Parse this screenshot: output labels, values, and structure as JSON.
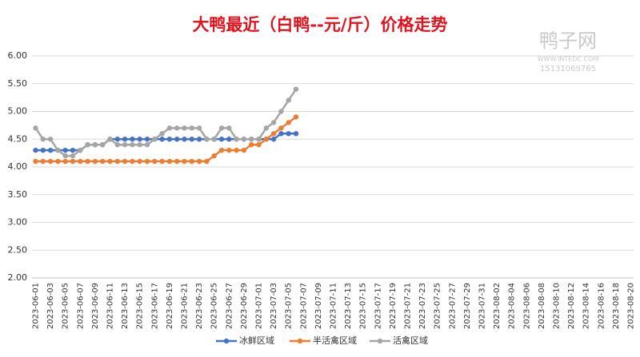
{
  "chart_data": {
    "type": "line",
    "title": "大鸭最近（白鸭--元/斤）价格走势",
    "watermark": [
      "鸭子网",
      "WWW.INTEDC.COM",
      "15131069765"
    ],
    "categories": [
      "2023-06-01",
      null,
      "2023-06-03",
      null,
      "2023-06-05",
      null,
      "2023-06-07",
      null,
      "2023-06-09",
      null,
      "2023-06-11",
      null,
      "2023-06-13",
      null,
      "2023-06-15",
      null,
      "2023-06-17",
      null,
      "2023-06-19",
      null,
      "2023-06-21",
      null,
      "2023-06-23",
      null,
      "2023-06-25",
      null,
      "2023-06-27",
      null,
      "2023-06-29",
      null,
      "2023-07-01",
      null,
      "2023-07-03",
      null,
      "2023-07-05",
      null,
      "2023-07-07",
      null,
      "2023-07-09",
      null,
      "2023-07-11",
      null,
      "2023-07-13",
      null,
      "2023-07-15",
      null,
      "2023-07-17",
      null,
      "2023-07-19",
      null,
      "2023-07-21",
      null,
      "2023-07-23",
      null,
      "2023-07-25",
      null,
      "2023-07-27",
      null,
      "2023-07-29",
      null,
      "2023-07-31",
      null,
      "2023-08-02",
      null,
      "2023-08-04",
      null,
      "2023-08-06",
      null,
      "2023-08-08",
      null,
      "2023-08-10",
      null,
      "2023-08-12",
      null,
      "2023-08-14",
      null,
      "2023-08-16",
      null,
      "2023-08-18",
      null,
      "2023-08-20"
    ],
    "series": [
      {
        "name": "冰鲜区域",
        "color": "#4472c4",
        "values": [
          4.3,
          4.3,
          4.3,
          4.3,
          4.3,
          4.3,
          4.3,
          4.4,
          4.4,
          4.4,
          4.5,
          4.5,
          4.5,
          4.5,
          4.5,
          4.5,
          4.5,
          4.5,
          4.5,
          4.5,
          4.5,
          4.5,
          4.5,
          4.5,
          4.5,
          4.5,
          4.5,
          4.5,
          4.5,
          4.5,
          4.5,
          4.5,
          4.5,
          4.6,
          4.6,
          4.6,
          null,
          null,
          null,
          null,
          null,
          null,
          null,
          null,
          null,
          null,
          null,
          null,
          null,
          null,
          null,
          null,
          null,
          null,
          null,
          null,
          null,
          null,
          null,
          null,
          null,
          null,
          null,
          null,
          null,
          null,
          null,
          null,
          null,
          null,
          null,
          null,
          null,
          null,
          null,
          null,
          null,
          null,
          null,
          null,
          null
        ]
      },
      {
        "name": "半活禽区域",
        "color": "#ed7d31",
        "values": [
          4.1,
          4.1,
          4.1,
          4.1,
          4.1,
          4.1,
          4.1,
          4.1,
          4.1,
          4.1,
          4.1,
          4.1,
          4.1,
          4.1,
          4.1,
          4.1,
          4.1,
          4.1,
          4.1,
          4.1,
          4.1,
          4.1,
          4.1,
          4.1,
          4.2,
          4.3,
          4.3,
          4.3,
          4.3,
          4.4,
          4.4,
          4.5,
          4.6,
          4.7,
          4.8,
          4.9,
          null,
          null,
          null,
          null,
          null,
          null,
          null,
          null,
          null,
          null,
          null,
          null,
          null,
          null,
          null,
          null,
          null,
          null,
          null,
          null,
          null,
          null,
          null,
          null,
          null,
          null,
          null,
          null,
          null,
          null,
          null,
          null,
          null,
          null,
          null,
          null,
          null,
          null,
          null,
          null,
          null,
          null,
          null,
          null,
          null
        ]
      },
      {
        "name": "活禽区域",
        "color": "#a5a5a5",
        "values": [
          4.7,
          4.5,
          4.5,
          4.3,
          4.2,
          4.2,
          4.3,
          4.4,
          4.4,
          4.4,
          4.5,
          4.4,
          4.4,
          4.4,
          4.4,
          4.4,
          4.5,
          4.6,
          4.7,
          4.7,
          4.7,
          4.7,
          4.7,
          4.5,
          4.5,
          4.7,
          4.7,
          4.5,
          4.5,
          4.5,
          4.5,
          4.7,
          4.8,
          5.0,
          5.2,
          5.4,
          null,
          null,
          null,
          null,
          null,
          null,
          null,
          null,
          null,
          null,
          null,
          null,
          null,
          null,
          null,
          null,
          null,
          null,
          null,
          null,
          null,
          null,
          null,
          null,
          null,
          null,
          null,
          null,
          null,
          null,
          null,
          null,
          null,
          null,
          null,
          null,
          null,
          null,
          null,
          null,
          null,
          null,
          null,
          null,
          null
        ]
      }
    ],
    "ylim": [
      2,
      6
    ],
    "yticks": [
      {
        "value": 2,
        "label": "2.00"
      },
      {
        "value": 2.5,
        "label": "2.50"
      },
      {
        "value": 3,
        "label": "3.00"
      },
      {
        "value": 3.5,
        "label": "3.50"
      },
      {
        "value": 4,
        "label": "4.00"
      },
      {
        "value": 4.5,
        "label": "4.50"
      },
      {
        "value": 5,
        "label": "5.00"
      },
      {
        "value": 5.5,
        "label": "5.50"
      },
      {
        "value": 6,
        "label": "6.00"
      }
    ],
    "grid": true,
    "legend": "bottom"
  }
}
